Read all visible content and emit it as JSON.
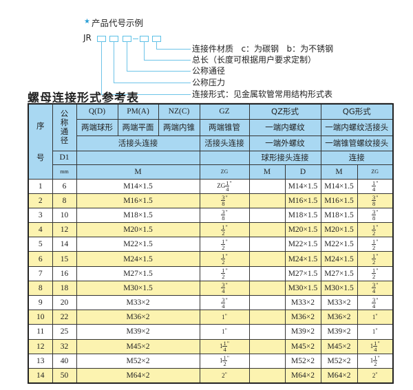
{
  "example": {
    "star_icon": "star-icon",
    "title": "产品代号示例",
    "code_prefix": "JR",
    "labels": [
      "连接件材质   c：为碳钢   b：为不锈钢",
      "总长（长度可根据用户要求定制）",
      "公称通径",
      "公称压力",
      "连接形式：见金属软管常用结构形式表"
    ]
  },
  "table_title": "螺母连接形式参考表",
  "colors": {
    "header_bg": "#a9d8f2",
    "alt_row_bg": "#fcf3b0",
    "accent": "#5bc0e6"
  },
  "header": {
    "seq_top": "序",
    "seq_bottom": "号",
    "dn": "公称通径",
    "d1": "D1",
    "mm": "mm",
    "row1": [
      "Q(D)",
      "PM(A)",
      "NZ(C)",
      "GZ",
      "QZ形式",
      "QG形式"
    ],
    "row2": [
      "两端球形",
      "两端平面",
      "两端内锥",
      "两端锥管",
      "一端内螺纹",
      "一端内螺纹活接头"
    ],
    "row3": [
      "活接头连接",
      "活接头连接",
      "一端外螺纹",
      "一端锥管螺纹接头"
    ],
    "row4": [
      "",
      "",
      "球形接头连接",
      "连接"
    ],
    "row5": [
      "M",
      "ZG",
      "M",
      "D",
      "M",
      "ZG"
    ]
  },
  "rows": [
    {
      "no": "1",
      "dn": "6",
      "m": "M14×1.5",
      "gz": {
        "pre": "ZG",
        "num": "1",
        "den": "4"
      },
      "qz_m": "",
      "qz_d": "M14×1.5",
      "qg_m": "M14×1.5",
      "qg_zg": {
        "pre": "",
        "num": "1",
        "den": "4"
      }
    },
    {
      "no": "2",
      "dn": "8",
      "m": "M16×1.5",
      "gz": {
        "pre": "",
        "num": "3",
        "den": "8"
      },
      "qz_m": "",
      "qz_d": "M16×1.5",
      "qg_m": "M16×1.5",
      "qg_zg": {
        "pre": "",
        "num": "3",
        "den": "8"
      }
    },
    {
      "no": "3",
      "dn": "10",
      "m": "M18×1.5",
      "gz": {
        "pre": "",
        "num": "3",
        "den": "8"
      },
      "qz_m": "",
      "qz_d": "M18×1.5",
      "qg_m": "M18×1.5",
      "qg_zg": {
        "pre": "",
        "num": "3",
        "den": "8"
      }
    },
    {
      "no": "4",
      "dn": "12",
      "m": "M20×1.5",
      "gz": {
        "pre": "",
        "num": "1",
        "den": "2"
      },
      "qz_m": "",
      "qz_d": "M20×1.5",
      "qg_m": "M20×1.5",
      "qg_zg": {
        "pre": "",
        "num": "1",
        "den": "2"
      }
    },
    {
      "no": "5",
      "dn": "14",
      "m": "M22×1.5",
      "gz": {
        "pre": "",
        "num": "1",
        "den": "2"
      },
      "qz_m": "",
      "qz_d": "M22×1.5",
      "qg_m": "M22×1.5",
      "qg_zg": {
        "pre": "",
        "num": "1",
        "den": "2"
      }
    },
    {
      "no": "6",
      "dn": "15",
      "m": "M24×1.5",
      "gz": {
        "pre": "",
        "num": "1",
        "den": "2"
      },
      "qz_m": "",
      "qz_d": "M24×1.5",
      "qg_m": "M24×1.5",
      "qg_zg": {
        "pre": "",
        "num": "1",
        "den": "2"
      }
    },
    {
      "no": "7",
      "dn": "16",
      "m": "M27×1.5",
      "gz": {
        "pre": "",
        "num": "1",
        "den": "2"
      },
      "qz_m": "",
      "qz_d": "M27×1.5",
      "qg_m": "M27×1.5",
      "qg_zg": {
        "pre": "",
        "num": "1",
        "den": "2"
      }
    },
    {
      "no": "8",
      "dn": "18",
      "m": "M30×1.5",
      "gz": {
        "pre": "",
        "num": "3",
        "den": "4"
      },
      "qz_m": "",
      "qz_d": "M30×1.5",
      "qg_m": "M30×1.5",
      "qg_zg": {
        "pre": "",
        "num": "3",
        "den": "4"
      }
    },
    {
      "no": "9",
      "dn": "20",
      "m": "M33×2",
      "gz": {
        "pre": "",
        "num": "3",
        "den": "4"
      },
      "qz_m": "",
      "qz_d": "M33×2",
      "qg_m": "M33×2",
      "qg_zg": {
        "pre": "",
        "num": "3",
        "den": "4"
      }
    },
    {
      "no": "10",
      "dn": "22",
      "m": "M36×2",
      "gz": {
        "pre": "1",
        "num": "",
        "den": ""
      },
      "qz_m": "",
      "qz_d": "M36×2",
      "qg_m": "M36×2",
      "qg_zg": {
        "pre": "1",
        "num": "",
        "den": ""
      }
    },
    {
      "no": "11",
      "dn": "25",
      "m": "M39×2",
      "gz": {
        "pre": "1",
        "num": "",
        "den": ""
      },
      "qz_m": "",
      "qz_d": "M39×2",
      "qg_m": "M39×2",
      "qg_zg": {
        "pre": "1",
        "num": "",
        "den": ""
      }
    },
    {
      "no": "12",
      "dn": "32",
      "m": "M45×2",
      "gz": {
        "pre": "1",
        "num": "1",
        "den": "4"
      },
      "qz_m": "",
      "qz_d": "M45×2",
      "qg_m": "M45×2",
      "qg_zg": {
        "pre": "1",
        "num": "1",
        "den": "4"
      }
    },
    {
      "no": "13",
      "dn": "40",
      "m": "M52×2",
      "gz": {
        "pre": "1",
        "num": "1",
        "den": "2"
      },
      "qz_m": "",
      "qz_d": "M52×2",
      "qg_m": "M52×2",
      "qg_zg": {
        "pre": "1",
        "num": "1",
        "den": "2"
      }
    },
    {
      "no": "14",
      "dn": "50",
      "m": "M64×2",
      "gz": {
        "pre": "2",
        "num": "",
        "den": ""
      },
      "qz_m": "",
      "qz_d": "M64×2",
      "qg_m": "M64×2",
      "qg_zg": {
        "pre": "2",
        "num": "",
        "den": ""
      }
    }
  ]
}
